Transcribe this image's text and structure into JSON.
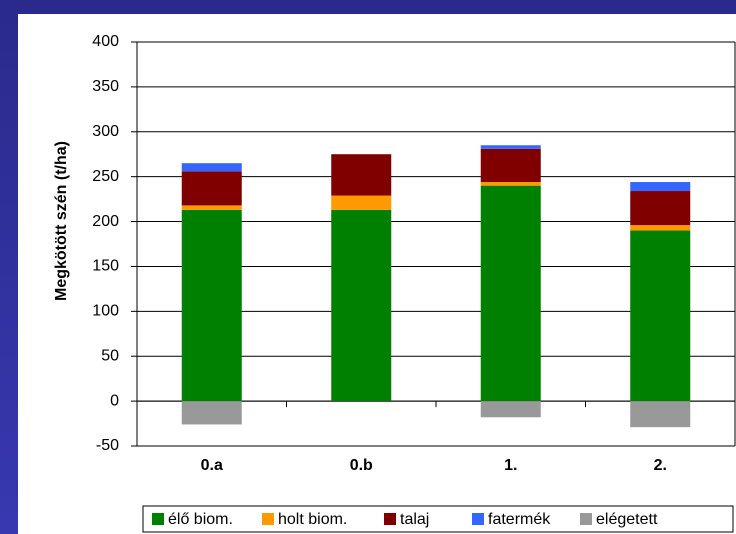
{
  "chart_data": {
    "type": "stacked_bar",
    "y_label": "Megkötött szén (t/ha)",
    "categories": [
      "0.a",
      "0.b",
      "1.",
      "2."
    ],
    "series": [
      {
        "name": "élő biom.",
        "color": "#008000",
        "values": [
          213,
          213,
          240,
          190
        ]
      },
      {
        "name": "holt biom.",
        "color": "#ff9900",
        "values": [
          5,
          16,
          4,
          6
        ]
      },
      {
        "name": "talaj",
        "color": "#800000",
        "values": [
          38,
          46,
          37,
          38
        ]
      },
      {
        "name": "fatermék",
        "color": "#3366ff",
        "values": [
          9,
          0,
          4,
          10
        ]
      },
      {
        "name": "elégetett",
        "color": "#999999",
        "values": [
          -26,
          0,
          -18,
          -29
        ]
      }
    ],
    "ylim": [
      -50,
      400
    ],
    "yticks": [
      -50,
      0,
      50,
      100,
      150,
      200,
      250,
      300,
      350,
      400
    ],
    "grid": true,
    "legend": "bottom"
  }
}
